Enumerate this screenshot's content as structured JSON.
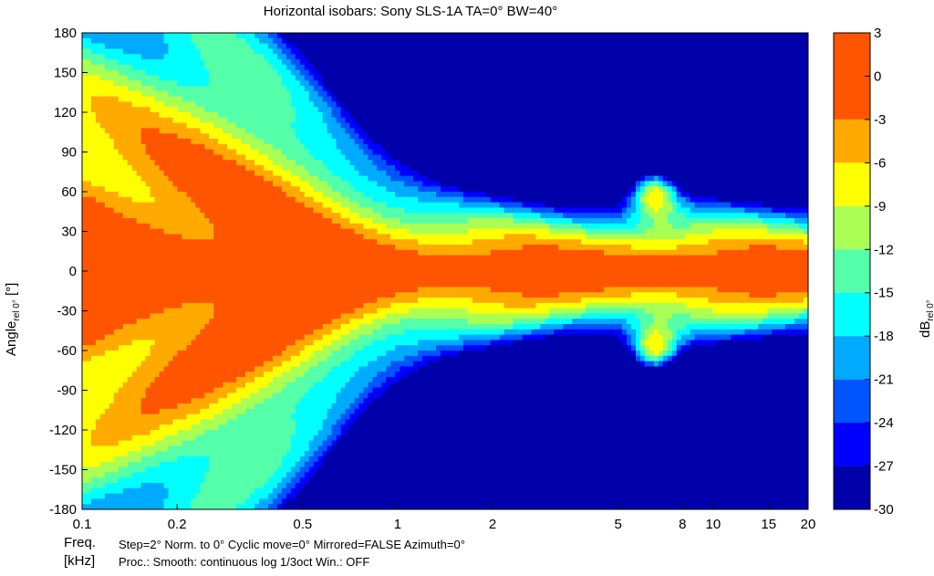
{
  "chart_data": {
    "type": "heatmap",
    "title": "Horizontal isobars: Sony  SLS-1A  TA=0° BW=40°",
    "xlabel": "Freq.",
    "xunit": "[kHz]",
    "ylabel_main": "Angle",
    "ylabel_sub": "rel 0°",
    "ylabel_unit": " [°]",
    "colorbar_label_main": "dB",
    "colorbar_label_sub": "rel 0°",
    "x_scale": "log",
    "x_range": [
      0.1,
      20
    ],
    "y_range": [
      -180,
      180
    ],
    "x_ticks": [
      {
        "value": 0.1,
        "label": "0.1"
      },
      {
        "value": 0.2,
        "label": "0.2"
      },
      {
        "value": 0.5,
        "label": "0.5"
      },
      {
        "value": 1,
        "label": "1"
      },
      {
        "value": 2,
        "label": "2"
      },
      {
        "value": 5,
        "label": "5"
      },
      {
        "value": 8,
        "label": "8"
      },
      {
        "value": 10,
        "label": "10"
      },
      {
        "value": 15,
        "label": "15"
      },
      {
        "value": 20,
        "label": "20"
      }
    ],
    "y_ticks": [
      180,
      150,
      120,
      90,
      60,
      30,
      0,
      -30,
      -60,
      -90,
      -120,
      -150,
      -180
    ],
    "colorbar_range": [
      -30,
      3
    ],
    "colorbar_ticks": [
      3,
      0,
      -3,
      -6,
      -9,
      -12,
      -15,
      -18,
      -21,
      -24,
      -27,
      -30
    ],
    "levels": [
      {
        "min": -3,
        "max": 3,
        "color": "#ff5500"
      },
      {
        "min": -6,
        "max": -3,
        "color": "#ffaa00"
      },
      {
        "min": -9,
        "max": -6,
        "color": "#ffff00"
      },
      {
        "min": -12,
        "max": -9,
        "color": "#aaff55"
      },
      {
        "min": -15,
        "max": -12,
        "color": "#55ffaa"
      },
      {
        "min": -18,
        "max": -15,
        "color": "#00ffff"
      },
      {
        "min": -21,
        "max": -18,
        "color": "#00aaff"
      },
      {
        "min": -24,
        "max": -21,
        "color": "#0055ff"
      },
      {
        "min": -27,
        "max": -24,
        "color": "#0000ff"
      },
      {
        "min": -30,
        "max": -27,
        "color": "#0000aa"
      }
    ],
    "grid": false,
    "annotation_line1": "Step=2°   Norm. to 0°   Cyclic move=0°   Mirrored=FALSE   Azimuth=0°",
    "annotation_line2": "Proc.: Smooth: continuous log 1/3oct    Win.: OFF"
  }
}
